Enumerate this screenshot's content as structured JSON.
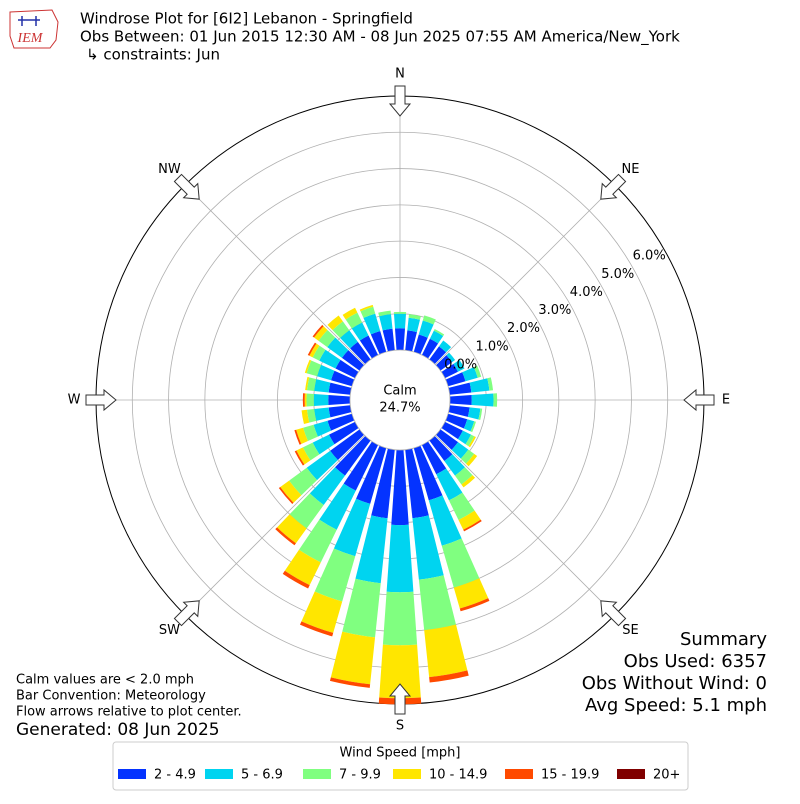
{
  "chart_data": {
    "type": "windrose",
    "title": "Windrose Plot for [6I2] Lebanon - Springfield",
    "subtitle": "Obs Between: 01 Jun 2015 12:30 AM - 08 Jun 2025 07:55 AM America/New_York",
    "constraints": "↳ constraints: Jun",
    "logo_text": "IEM",
    "directions": [
      "N",
      "NE",
      "E",
      "SE",
      "S",
      "SW",
      "W",
      "NW"
    ],
    "calm_label": "Calm",
    "calm_text": "24.7%",
    "rlim": [
      0,
      7
    ],
    "rticks": [
      {
        "value": 0,
        "label": "0.0%"
      },
      {
        "value": 1,
        "label": "1.0%"
      },
      {
        "value": 2,
        "label": "2.0%"
      },
      {
        "value": 3,
        "label": "3.0%"
      },
      {
        "value": 4,
        "label": "4.0%"
      },
      {
        "value": 5,
        "label": "5.0%"
      },
      {
        "value": 6,
        "label": "6.0%"
      }
    ],
    "grid": true,
    "legend_title": "Wind Speed [mph]",
    "series": [
      {
        "name": "2 - 4.9",
        "color": "#0433ff",
        "values": [
          0.6,
          0.55,
          0.5,
          0.5,
          0.45,
          0.4,
          0.4,
          0.5,
          0.6,
          0.6,
          0.55,
          0.55,
          0.55,
          0.6,
          0.7,
          0.9,
          1.5,
          1.9,
          2.07,
          1.9,
          1.6,
          1.4,
          1.2,
          1.0,
          0.8,
          0.7,
          0.6,
          0.6,
          0.6,
          0.6,
          0.6,
          0.6,
          0.6,
          0.6,
          0.6,
          0.6
        ]
      },
      {
        "name": "5 - 6.9",
        "color": "#00d4f0",
        "values": [
          0.4,
          0.35,
          0.4,
          0.25,
          0.2,
          0.1,
          0.2,
          0.35,
          0.5,
          0.6,
          0.3,
          0.2,
          0.25,
          0.35,
          0.5,
          0.8,
          1.3,
          1.7,
          1.85,
          1.8,
          1.5,
          1.2,
          1.0,
          0.8,
          0.5,
          0.4,
          0.4,
          0.4,
          0.4,
          0.4,
          0.5,
          0.5,
          0.4,
          0.4,
          0.5,
          0.4
        ]
      },
      {
        "name": "7 - 9.9",
        "color": "#80ff80",
        "values": [
          0.05,
          0.1,
          0.15,
          0.05,
          0,
          0,
          0,
          0.1,
          0.1,
          0.1,
          0.05,
          0.05,
          0.1,
          0.2,
          0.3,
          0.6,
          1.2,
          1.4,
          1.46,
          1.5,
          1.3,
          1.0,
          0.8,
          0.6,
          0.3,
          0.3,
          0.2,
          0.2,
          0.2,
          0.3,
          0.2,
          0.3,
          0.3,
          0.3,
          0.2,
          0.1
        ]
      },
      {
        "name": "10 - 14.9",
        "color": "#ffe600",
        "values": [
          0,
          0,
          0,
          0,
          0,
          0,
          0,
          0,
          0,
          0,
          0,
          0,
          0.05,
          0.1,
          0.1,
          0.3,
          0.6,
          1.3,
          1.46,
          1.3,
          0.9,
          0.7,
          0.5,
          0.3,
          0.2,
          0.2,
          0.15,
          0.05,
          0.05,
          0.05,
          0.1,
          0.15,
          0.2,
          0.15,
          0.05,
          0
        ]
      },
      {
        "name": "15 - 19.9",
        "color": "#ff4a00",
        "values": [
          0,
          0,
          0,
          0,
          0,
          0,
          0,
          0,
          0,
          0,
          0,
          0,
          0,
          0,
          0,
          0.05,
          0.08,
          0.15,
          0.17,
          0.1,
          0.1,
          0.1,
          0.07,
          0.05,
          0.05,
          0.05,
          0,
          0.05,
          0,
          0,
          0.05,
          0.05,
          0,
          0,
          0,
          0
        ]
      },
      {
        "name": "20+",
        "color": "#800000",
        "values": [
          0,
          0,
          0,
          0,
          0,
          0,
          0,
          0,
          0,
          0,
          0,
          0,
          0,
          0,
          0,
          0,
          0,
          0,
          0,
          0,
          0,
          0,
          0,
          0,
          0,
          0,
          0,
          0,
          0,
          0,
          0,
          0,
          0,
          0,
          0,
          0
        ]
      }
    ],
    "summary": [
      "Summary",
      "Obs Used: 6357",
      "Obs Without Wind: 0",
      "Avg Speed: 5.1 mph"
    ],
    "notes": [
      "Calm values are < 2.0 mph",
      "Bar Convention: Meteorology",
      "Flow arrows relative to plot center."
    ],
    "generated": "Generated: 08 Jun 2025"
  }
}
